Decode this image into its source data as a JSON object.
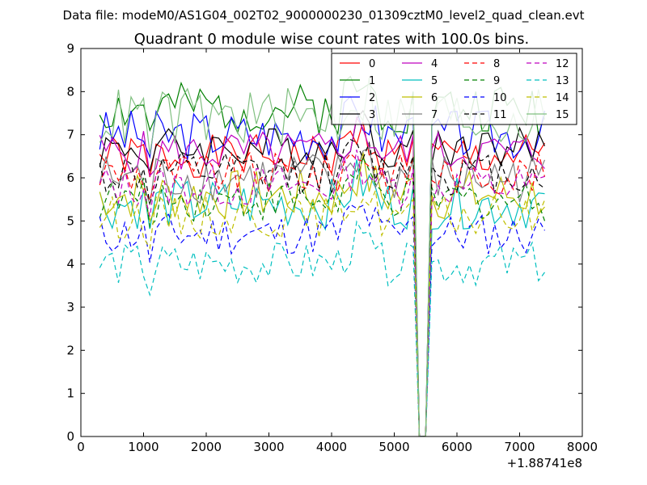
{
  "chart_data": {
    "type": "line",
    "suptitle": "Data file: modeM0/AS1G04_002T02_9000000230_01309cztM0_level2_quad_clean.evt",
    "title": "Quadrant 0 module wise count rates with 100.0s bins.",
    "xlabel": "",
    "ylabel": "",
    "xlim": [
      0,
      8000
    ],
    "ylim": [
      0,
      9
    ],
    "x_ticks": [
      0,
      1000,
      2000,
      3000,
      4000,
      5000,
      6000,
      7000,
      8000
    ],
    "y_ticks": [
      0,
      1,
      2,
      3,
      4,
      5,
      6,
      7,
      8,
      9
    ],
    "x_offset_label": "+1.88741e8",
    "grid": false,
    "legend_placement": "top-right",
    "gap": {
      "start": 5350,
      "end": 5600,
      "drop_to": 0
    },
    "x": [
      300,
      400,
      500,
      600,
      700,
      800,
      900,
      1000,
      1100,
      1200,
      1300,
      1400,
      1500,
      1600,
      1700,
      1800,
      1900,
      2000,
      2100,
      2200,
      2300,
      2400,
      2500,
      2600,
      2700,
      2800,
      2900,
      3000,
      3100,
      3200,
      3300,
      3400,
      3500,
      3600,
      3700,
      3800,
      3900,
      4000,
      4100,
      4200,
      4300,
      4400,
      4500,
      4600,
      4700,
      4800,
      4900,
      5000,
      5100,
      5200,
      5300,
      5400,
      5500,
      5600,
      5700,
      5800,
      5900,
      6000,
      6100,
      6200,
      6300,
      6400,
      6500,
      6600,
      6700,
      6800,
      6900,
      7000,
      7100,
      7200,
      7300,
      7400
    ],
    "series": [
      {
        "name": "0",
        "color": "#ff0000",
        "dash": "solid",
        "base": 6.5,
        "amp": 0.25,
        "seed": 1,
        "dip": 0.3
      },
      {
        "name": "1",
        "color": "#008000",
        "dash": "solid",
        "base": 7.6,
        "amp": 0.3,
        "seed": 2,
        "dip": 0.3
      },
      {
        "name": "2",
        "color": "#0000ff",
        "dash": "solid",
        "base": 7.0,
        "amp": 0.3,
        "seed": 3,
        "dip": 0.3
      },
      {
        "name": "3",
        "color": "#000000",
        "dash": "solid",
        "base": 6.7,
        "amp": 0.25,
        "seed": 4,
        "dip": 0.3
      },
      {
        "name": "4",
        "color": "#bf00bf",
        "dash": "solid",
        "base": 6.6,
        "amp": 0.25,
        "seed": 5,
        "dip": 0.3
      },
      {
        "name": "5",
        "color": "#00bfbf",
        "dash": "solid",
        "base": 5.4,
        "amp": 0.3,
        "seed": 6,
        "dip": 0.3
      },
      {
        "name": "6",
        "color": "#bfbf00",
        "dash": "solid",
        "base": 5.6,
        "amp": 0.3,
        "seed": 7,
        "dip": 0.3
      },
      {
        "name": "7",
        "color": "#808080",
        "dash": "solid",
        "base": 6.0,
        "amp": 0.3,
        "seed": 8,
        "dip": 0.3
      },
      {
        "name": "8",
        "color": "#ff0000",
        "dash": "dashed",
        "base": 6.1,
        "amp": 0.25,
        "seed": 9,
        "dip": 0.3
      },
      {
        "name": "9",
        "color": "#008000",
        "dash": "dashed",
        "base": 5.5,
        "amp": 0.25,
        "seed": 10,
        "dip": 0.3
      },
      {
        "name": "10",
        "color": "#0000ff",
        "dash": "dashed",
        "base": 4.7,
        "amp": 0.25,
        "seed": 11,
        "dip": 0.3
      },
      {
        "name": "11",
        "color": "#000000",
        "dash": "dashed",
        "base": 6.1,
        "amp": 0.25,
        "seed": 12,
        "dip": 0.3
      },
      {
        "name": "12",
        "color": "#bf00bf",
        "dash": "dashed",
        "base": 5.8,
        "amp": 0.25,
        "seed": 13,
        "dip": 0.3
      },
      {
        "name": "13",
        "color": "#00bfbf",
        "dash": "dashed",
        "base": 4.0,
        "amp": 0.25,
        "seed": 14,
        "dip": 0.3
      },
      {
        "name": "14",
        "color": "#bfbf00",
        "dash": "dashed",
        "base": 5.1,
        "amp": 0.25,
        "seed": 15,
        "dip": 0.3
      },
      {
        "name": "15",
        "color": "#80c080",
        "dash": "solid",
        "base": 7.4,
        "amp": 0.35,
        "seed": 16,
        "dip": 0.3
      }
    ]
  }
}
